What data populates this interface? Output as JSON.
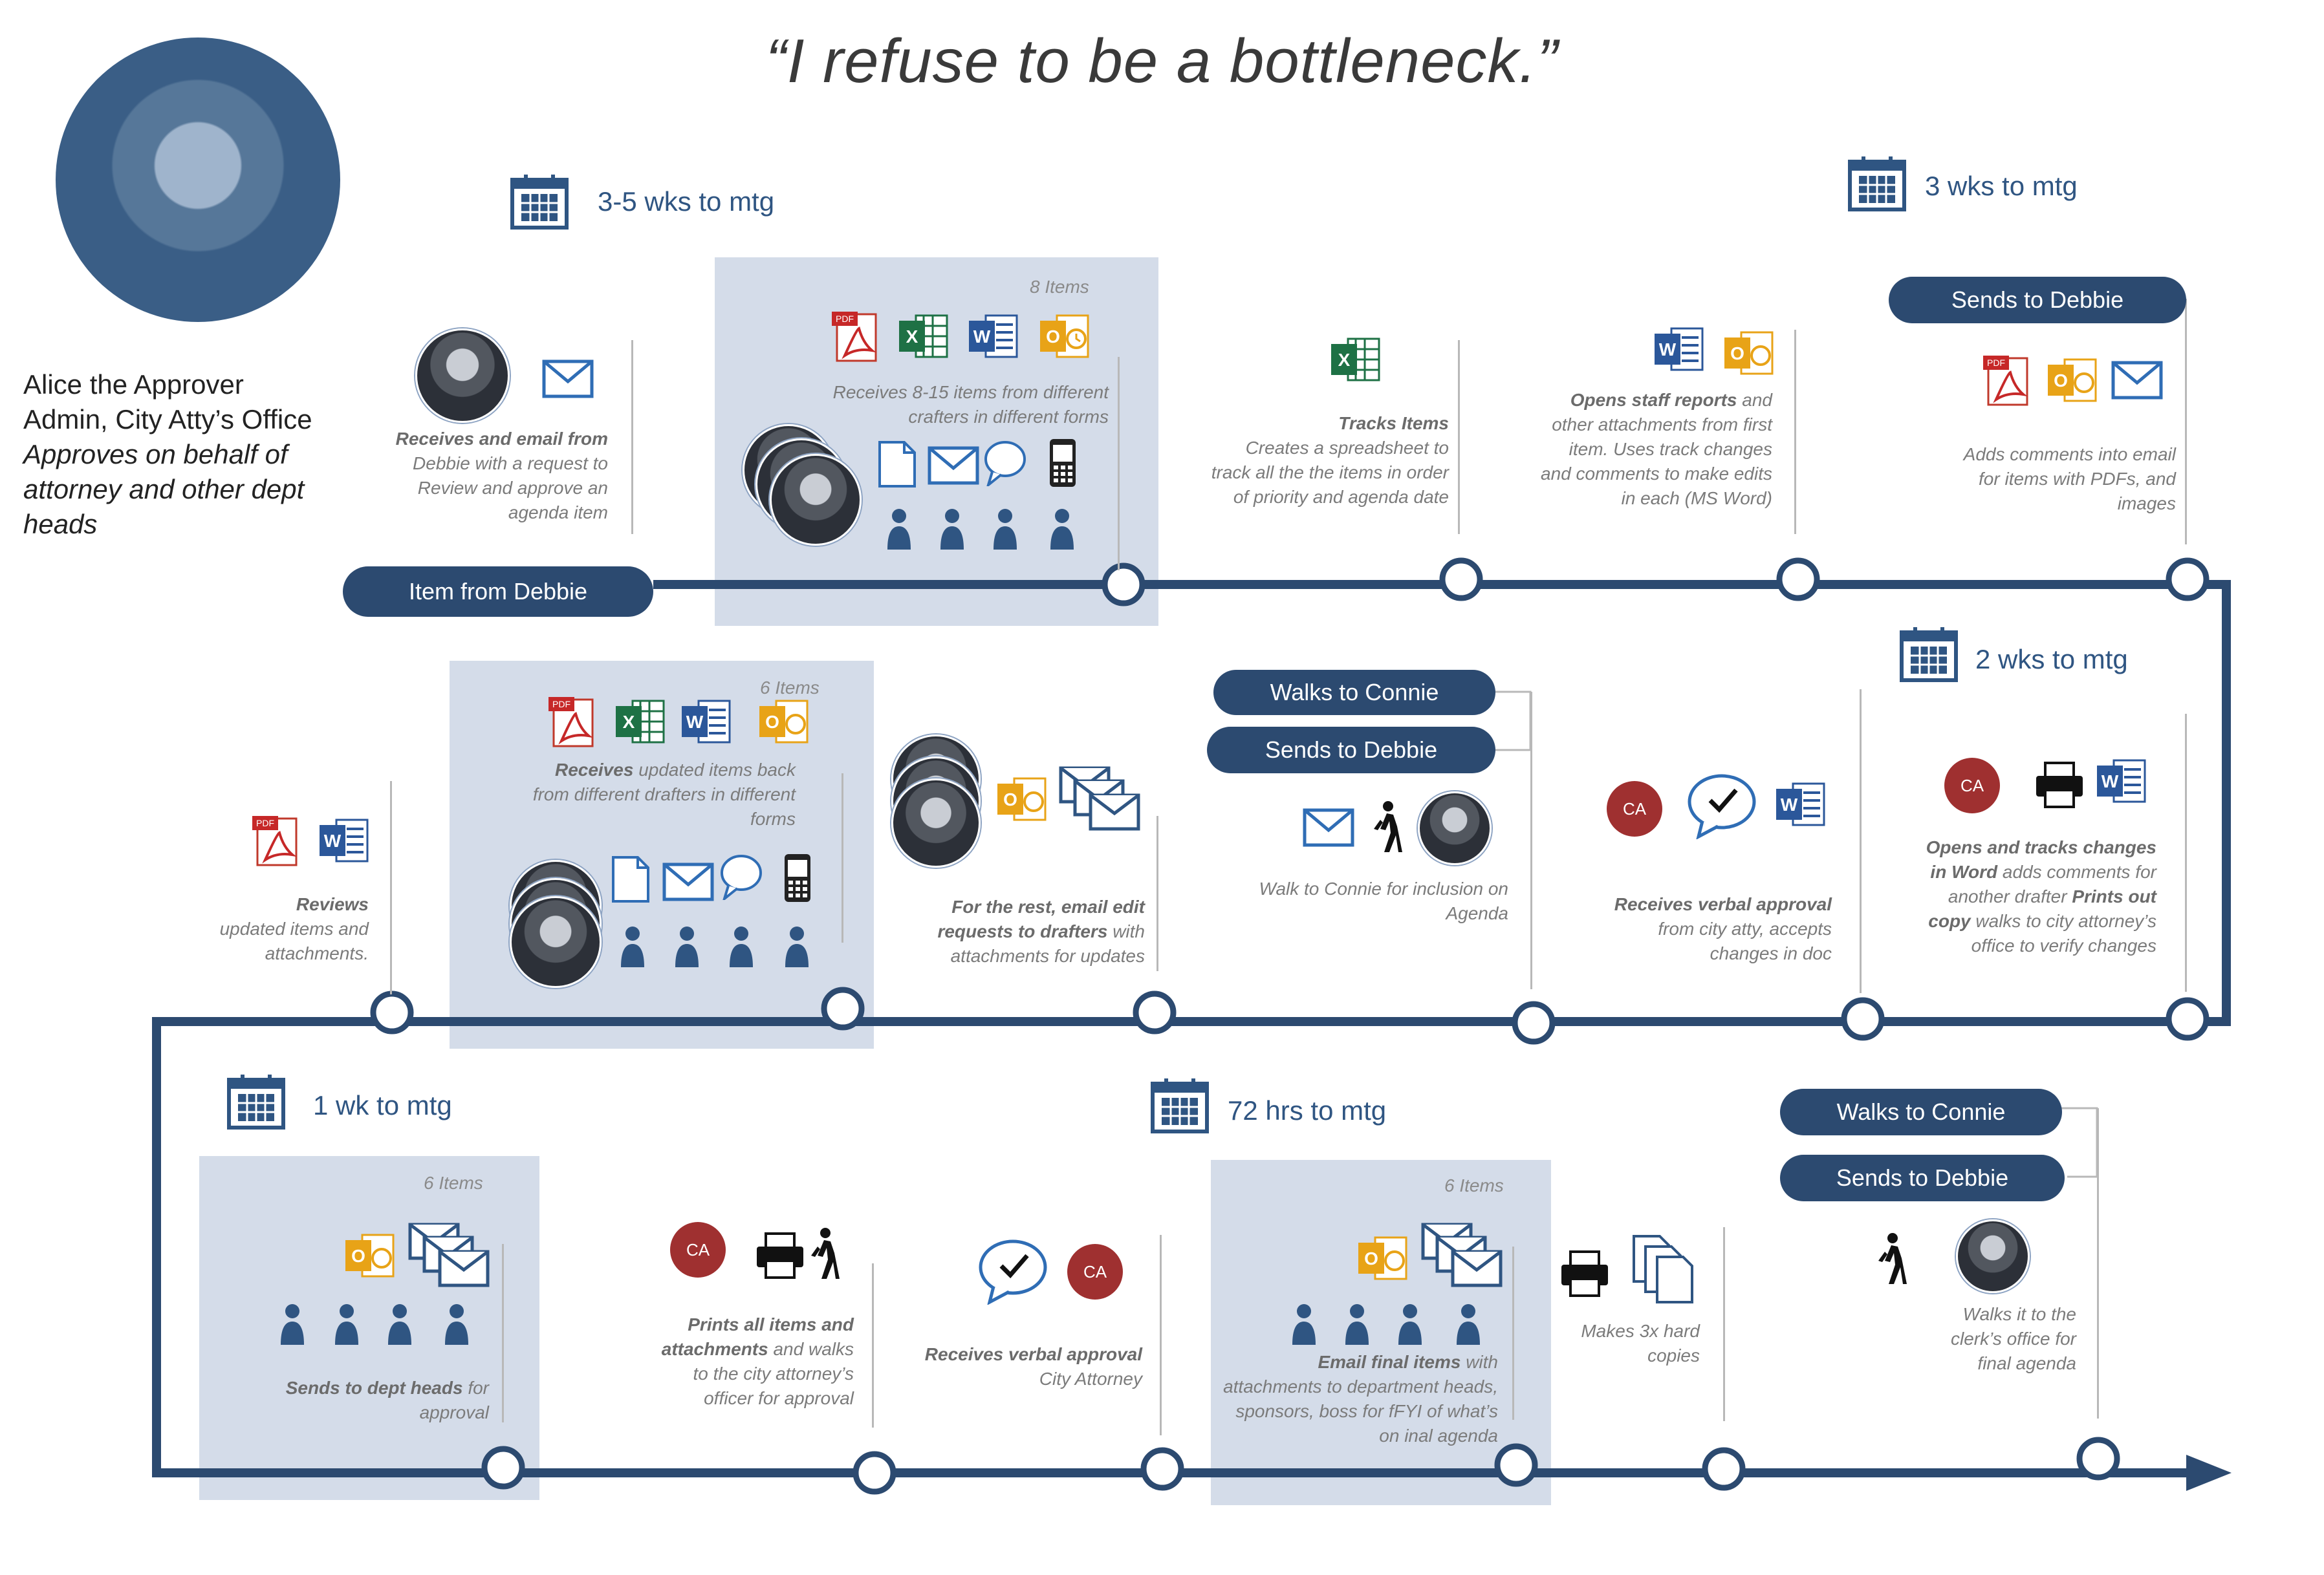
{
  "quote": "“I refuse to be a bottleneck.”",
  "persona": {
    "name": "Alice the Approver",
    "role": "Admin, City Atty’s Office",
    "desc": "Approves on behalf of attorney and other dept heads"
  },
  "colors": {
    "navy": "#2c4a70",
    "panel": "#d4dce9",
    "ca_red": "#9f3030",
    "text_blue": "#2f5582"
  },
  "milestones": [
    "3-5 wks to mtg",
    "3 wks to mtg",
    "2 wks to mtg",
    "1 wk to mtg",
    "72 hrs to mtg"
  ],
  "pills": {
    "item_from_debbie": "Item from Debbie",
    "sends_debbie_1": "Sends to Debbie",
    "walks_connie_1": "Walks to Connie",
    "sends_debbie_2": "Sends to Debbie",
    "walks_connie_2": "Walks to Connie",
    "sends_debbie_3": "Sends to Debbie"
  },
  "counts": {
    "c1": "8 Items",
    "c2": "6 Items",
    "c3": "6 Items",
    "c4": "6 Items"
  },
  "steps": {
    "s1": {
      "bold": "Receives and email from",
      "rest": "Debbie with a request to Review and approve an agenda item"
    },
    "s2": {
      "bold": "",
      "rest": "Receives 8-15 items from different crafters in different forms"
    },
    "s3": {
      "bold": "Tracks Items",
      "rest": "Creates a spreadsheet to track all the the items in order of priority and agenda date"
    },
    "s4": {
      "bold": "Opens staff reports",
      "rest": "and other attachments from first item. Uses track changes and comments to make edits in each (MS Word)"
    },
    "s5": {
      "bold": "",
      "rest": "Adds comments into email for items with PDFs, and images"
    },
    "s6": {
      "bold": "Reviews",
      "rest": "updated items and attachments."
    },
    "s7": {
      "bold": "Receives",
      "rest": "updated items back from different drafters in different forms"
    },
    "s8": {
      "bold": "For the rest, email edit requests to drafters",
      "rest": "with attachments  for updates"
    },
    "s9": {
      "bold": "",
      "rest": "Walk to Connie for inclusion on Agenda"
    },
    "s10": {
      "bold": "Receives verbal approval",
      "rest": "from city atty, accepts changes in doc"
    },
    "s11": {
      "bold": "Opens and tracks changes in Word",
      "rest": "adds comments for another drafter",
      "bold2": "Prints out copy",
      "rest2": "walks to city attorney’s office to verify changes"
    },
    "s12": {
      "bold": "Sends to dept heads",
      "rest": "for approval"
    },
    "s13": {
      "bold": "Prints all items and attachments",
      "rest": "and walks to the city attorney’s officer for approval"
    },
    "s14": {
      "bold": "Receives verbal approval",
      "rest": "City Attorney"
    },
    "s15": {
      "bold": "Email final items",
      "rest": "with attachments to department heads, sponsors, boss for fFYI of what’s on inal agenda"
    },
    "s16": {
      "bold": "",
      "rest": "Makes 3x hard copies"
    },
    "s17": {
      "bold": "",
      "rest": "Walks it to the clerk’s office for final agenda"
    }
  },
  "ca_label": "CA",
  "icons": [
    "calendar-icon",
    "envelope-icon",
    "pdf-icon",
    "excel-icon",
    "word-icon",
    "outlook-icon",
    "document-icon",
    "chat-bubble-icon",
    "phone-icon",
    "person-icon",
    "walking-person-icon",
    "printer-icon",
    "copies-icon",
    "stacked-mail-icon",
    "check-bubble-icon"
  ]
}
